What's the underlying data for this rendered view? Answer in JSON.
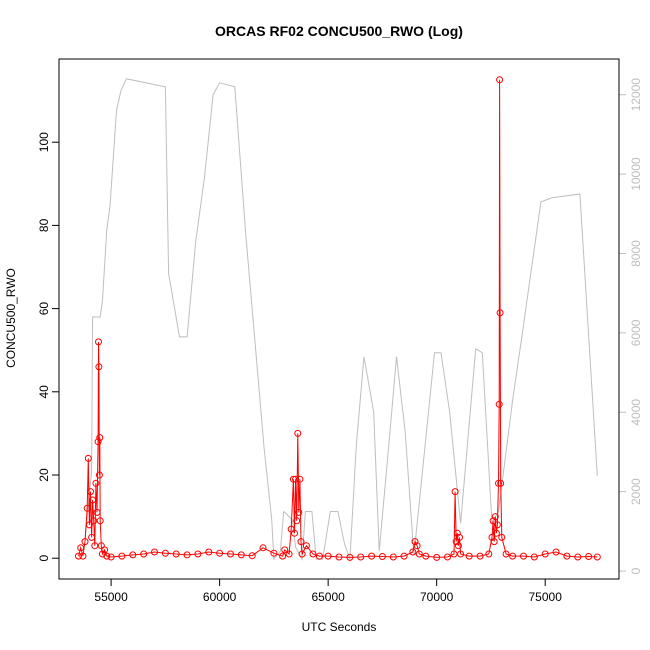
{
  "chart_data": {
    "type": "scatter",
    "title": "ORCAS RF02 CONCU500_RWO (Log)",
    "xlabel": "UTC Seconds",
    "ylabel": "CONCU500_RWO",
    "xlim": [
      52600,
      78400
    ],
    "ylim": [
      -5,
      120
    ],
    "y2lim": [
      -200,
      12900
    ],
    "x_ticks": [
      "55000",
      "60000",
      "65000",
      "70000",
      "75000"
    ],
    "x_tick_values": [
      55000,
      60000,
      65000,
      70000,
      75000
    ],
    "y_ticks": [
      "0",
      "20",
      "40",
      "60",
      "80",
      "100"
    ],
    "y_tick_values": [
      0,
      20,
      40,
      60,
      80,
      100
    ],
    "y2_ticks": [
      "0",
      "2000",
      "4000",
      "6000",
      "8000",
      "10000",
      "12000"
    ],
    "y2_tick_values": [
      0,
      2000,
      4000,
      6000,
      8000,
      10000,
      12000
    ],
    "grid": false,
    "colors": {
      "concentration": "#ff0000",
      "altitude": "#bebebe",
      "axis": "#000000",
      "right_axis": "#bebebe"
    },
    "series": [
      {
        "axis": "left",
        "style": "points-and-lines",
        "color": "#ff0000",
        "x": [
          53500,
          53600,
          53700,
          53800,
          53900,
          53950,
          54000,
          54050,
          54100,
          54150,
          54200,
          54250,
          54300,
          54350,
          54400,
          54420,
          54440,
          54460,
          54480,
          54500,
          54550,
          54600,
          54700,
          54800,
          55000,
          55500,
          56000,
          56500,
          57000,
          57500,
          58000,
          58500,
          59000,
          59500,
          60000,
          60500,
          61000,
          61500,
          62000,
          62500,
          62900,
          63000,
          63200,
          63300,
          63400,
          63450,
          63500,
          63550,
          63600,
          63650,
          63700,
          63750,
          63800,
          64000,
          64300,
          64600,
          65000,
          65500,
          66000,
          66500,
          67000,
          67500,
          68000,
          68500,
          68900,
          69000,
          69100,
          69200,
          69500,
          70000,
          70500,
          70800,
          70850,
          70900,
          70950,
          71000,
          71050,
          71100,
          71500,
          72000,
          72400,
          72550,
          72600,
          72650,
          72700,
          72750,
          72800,
          72850,
          72880,
          72900,
          72920,
          72950,
          73000,
          73200,
          73500,
          74000,
          74500,
          75000,
          75500,
          76000,
          76500,
          77000,
          77400
        ],
        "y": [
          0.5,
          2.5,
          0.5,
          4,
          12,
          24,
          8,
          16,
          5,
          14,
          9,
          3,
          18,
          11,
          28,
          52,
          46,
          20,
          29,
          9,
          3,
          1,
          2,
          0.5,
          0.3,
          0.5,
          0.8,
          1,
          1.5,
          1.2,
          1,
          0.8,
          1,
          1.5,
          1.2,
          1,
          0.8,
          0.6,
          2.5,
          1.2,
          0.5,
          2,
          1,
          7,
          19,
          6,
          19,
          9,
          30,
          11,
          19,
          4,
          1,
          3,
          1,
          0.5,
          0.5,
          0.3,
          0.2,
          0.3,
          0.5,
          0.4,
          0.3,
          0.5,
          1.5,
          4,
          3,
          1,
          0.5,
          0.2,
          0.3,
          1,
          16,
          4,
          6,
          3,
          5,
          1,
          0.5,
          0.5,
          1,
          5,
          9,
          4,
          10,
          6,
          8,
          18,
          37,
          115,
          59,
          18,
          5,
          1,
          0.5,
          0.5,
          0.3,
          1,
          1.5,
          0.5,
          0.3,
          0.4,
          0.3
        ]
      },
      {
        "axis": "right",
        "style": "line",
        "color": "#bebebe",
        "x": [
          53800,
          54100,
          54150,
          54500,
          54600,
          54800,
          54950,
          55250,
          55450,
          55700,
          57500,
          57650,
          58150,
          58500,
          58900,
          59300,
          59700,
          60000,
          60700,
          61200,
          62050,
          62400,
          62500,
          62800,
          62950,
          63350,
          63500,
          63800,
          63950,
          64250,
          64450,
          64750,
          65100,
          65450,
          65750,
          66000,
          66300,
          66650,
          67100,
          67350,
          67800,
          68150,
          68550,
          68950,
          69250,
          69900,
          70200,
          70600,
          71100,
          71800,
          72100,
          72550,
          72850,
          73500,
          73950,
          74800,
          75300,
          76600,
          77400
        ],
        "y": [
          800,
          2500,
          6400,
          6400,
          6800,
          8600,
          9200,
          11600,
          12100,
          12400,
          12200,
          7500,
          5900,
          5900,
          8300,
          9900,
          12000,
          12300,
          12200,
          8500,
          3100,
          1300,
          300,
          500,
          1500,
          1300,
          600,
          300,
          1500,
          1500,
          300,
          300,
          1500,
          1500,
          700,
          300,
          3200,
          5400,
          4000,
          500,
          3200,
          5400,
          3500,
          400,
          2000,
          5500,
          5500,
          4000,
          1200,
          5600,
          5500,
          1200,
          1500,
          4300,
          6000,
          9300,
          9400,
          9500,
          2400
        ]
      }
    ]
  }
}
